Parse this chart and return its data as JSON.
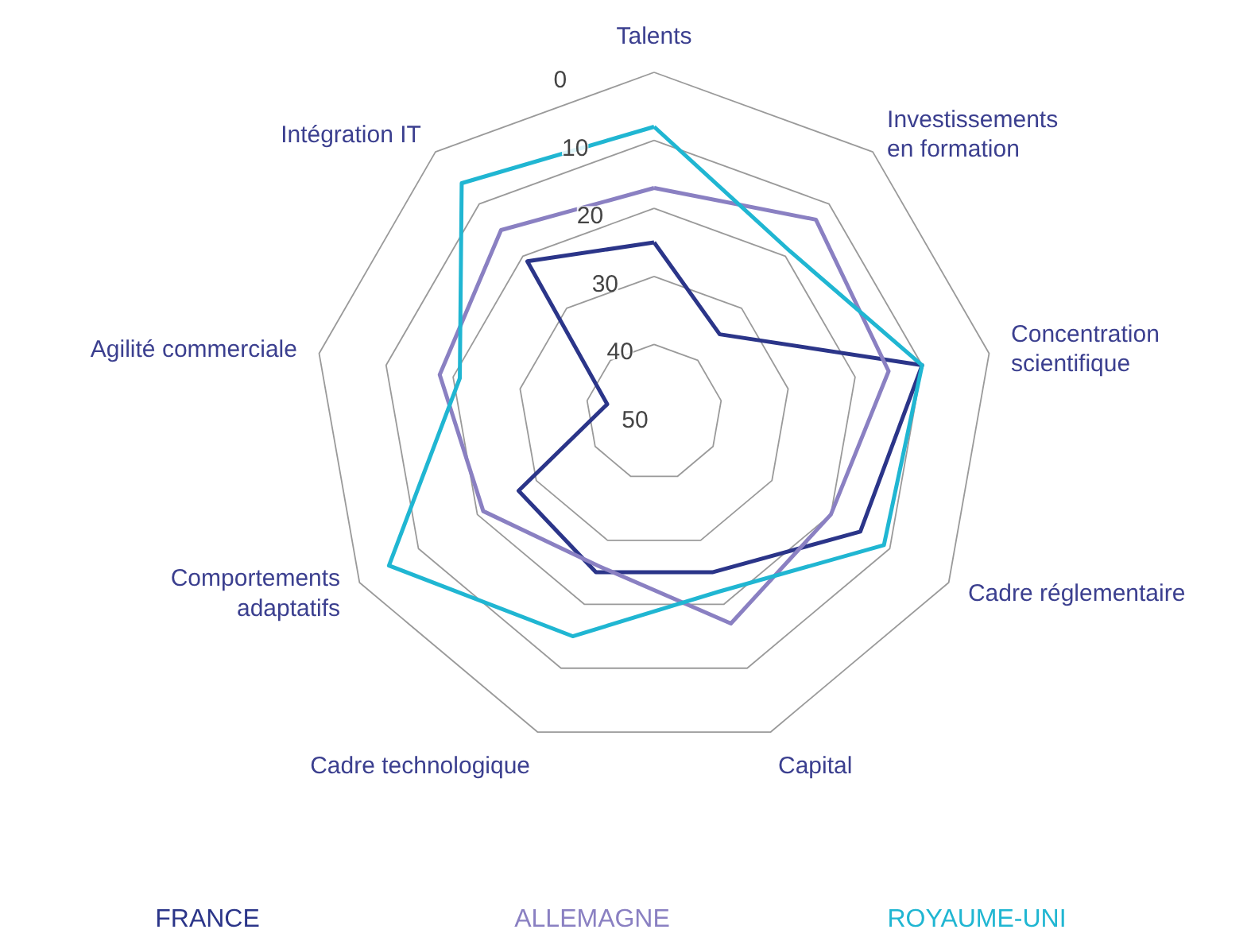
{
  "chart_data": {
    "type": "radar",
    "categories": [
      "Talents",
      "Investissements\nen formation",
      "Concentration\nscientifique",
      "Cadre réglementaire",
      "Capital",
      "Cadre technologique",
      "Comportements\nadaptatifs",
      "Agilité commerciale",
      "Intégration IT"
    ],
    "series": [
      {
        "name": "FRANCE",
        "color": "#2b3589",
        "values": [
          25,
          35,
          10,
          15,
          25,
          25,
          27,
          43,
          21
        ]
      },
      {
        "name": "ALLEMAGNE",
        "color": "#8a80c2",
        "values": [
          17,
          13,
          15,
          20,
          17,
          26,
          21,
          18,
          15
        ]
      },
      {
        "name": "ROYAUME-UNI",
        "color": "#20b6d2",
        "values": [
          8,
          19,
          10,
          11,
          22,
          15,
          5,
          21,
          6
        ]
      }
    ],
    "ylim": [
      50,
      0
    ],
    "yticks": [
      0,
      10,
      20,
      30,
      40,
      50
    ],
    "grid": true,
    "legend": "bottom"
  }
}
